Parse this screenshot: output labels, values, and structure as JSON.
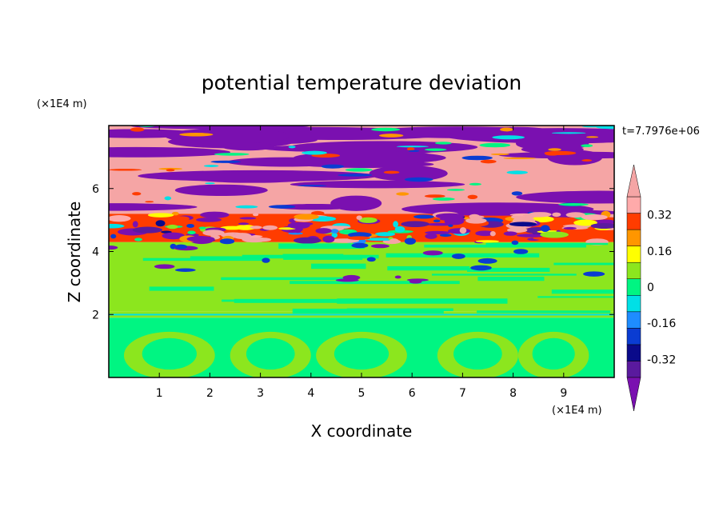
{
  "chart_data": {
    "type": "heatmap",
    "title": "potential temperature deviation",
    "xlabel": "X coordinate",
    "ylabel": "Z coordinate",
    "x_unit": "(×1E4 m)",
    "y_unit": "(×1E4 m)",
    "time_label": "t=7.7976e+06",
    "xlim": [
      0,
      10
    ],
    "ylim": [
      0,
      8
    ],
    "x_ticks": [
      1,
      2,
      3,
      4,
      5,
      6,
      7,
      8,
      9
    ],
    "y_ticks": [
      2,
      4,
      6
    ],
    "colorbar": {
      "levels": [
        -0.4,
        -0.32,
        -0.24,
        -0.16,
        -0.08,
        0,
        0.08,
        0.16,
        0.24,
        0.32,
        0.4
      ],
      "labels": [
        "0.32",
        "0.16",
        "0",
        "-0.16",
        "-0.32"
      ],
      "label_values": [
        0.32,
        0.16,
        0,
        -0.16,
        -0.32
      ],
      "colors_low_to_high": [
        "#5a1a9e",
        "#0a0a8a",
        "#0a3cd2",
        "#1e8cff",
        "#00e0e6",
        "#00f582",
        "#8ce61e",
        "#ffff00",
        "#ff9600",
        "#ff3c00",
        "#ffaaaa"
      ],
      "under_color": "#7a10b0",
      "over_color": "#f5a5a5",
      "extend": "both"
    },
    "bands": [
      {
        "z": [
          0.0,
          1.9
        ],
        "dominant": "#00f582",
        "secondary": "#8ce61e"
      },
      {
        "z": [
          1.9,
          2.1
        ],
        "dominant": "#8ce61e",
        "secondary": "#00e0e6"
      },
      {
        "z": [
          2.1,
          4.3
        ],
        "dominant": "#8ce61e",
        "secondary": "#00f582"
      },
      {
        "z": [
          4.3,
          5.2
        ],
        "dominant": "#ff3c00",
        "secondary": "#ffff00"
      },
      {
        "z": [
          5.2,
          8.0
        ],
        "dominant": "#f5a5a5",
        "secondary": "#7a10b0"
      }
    ]
  }
}
